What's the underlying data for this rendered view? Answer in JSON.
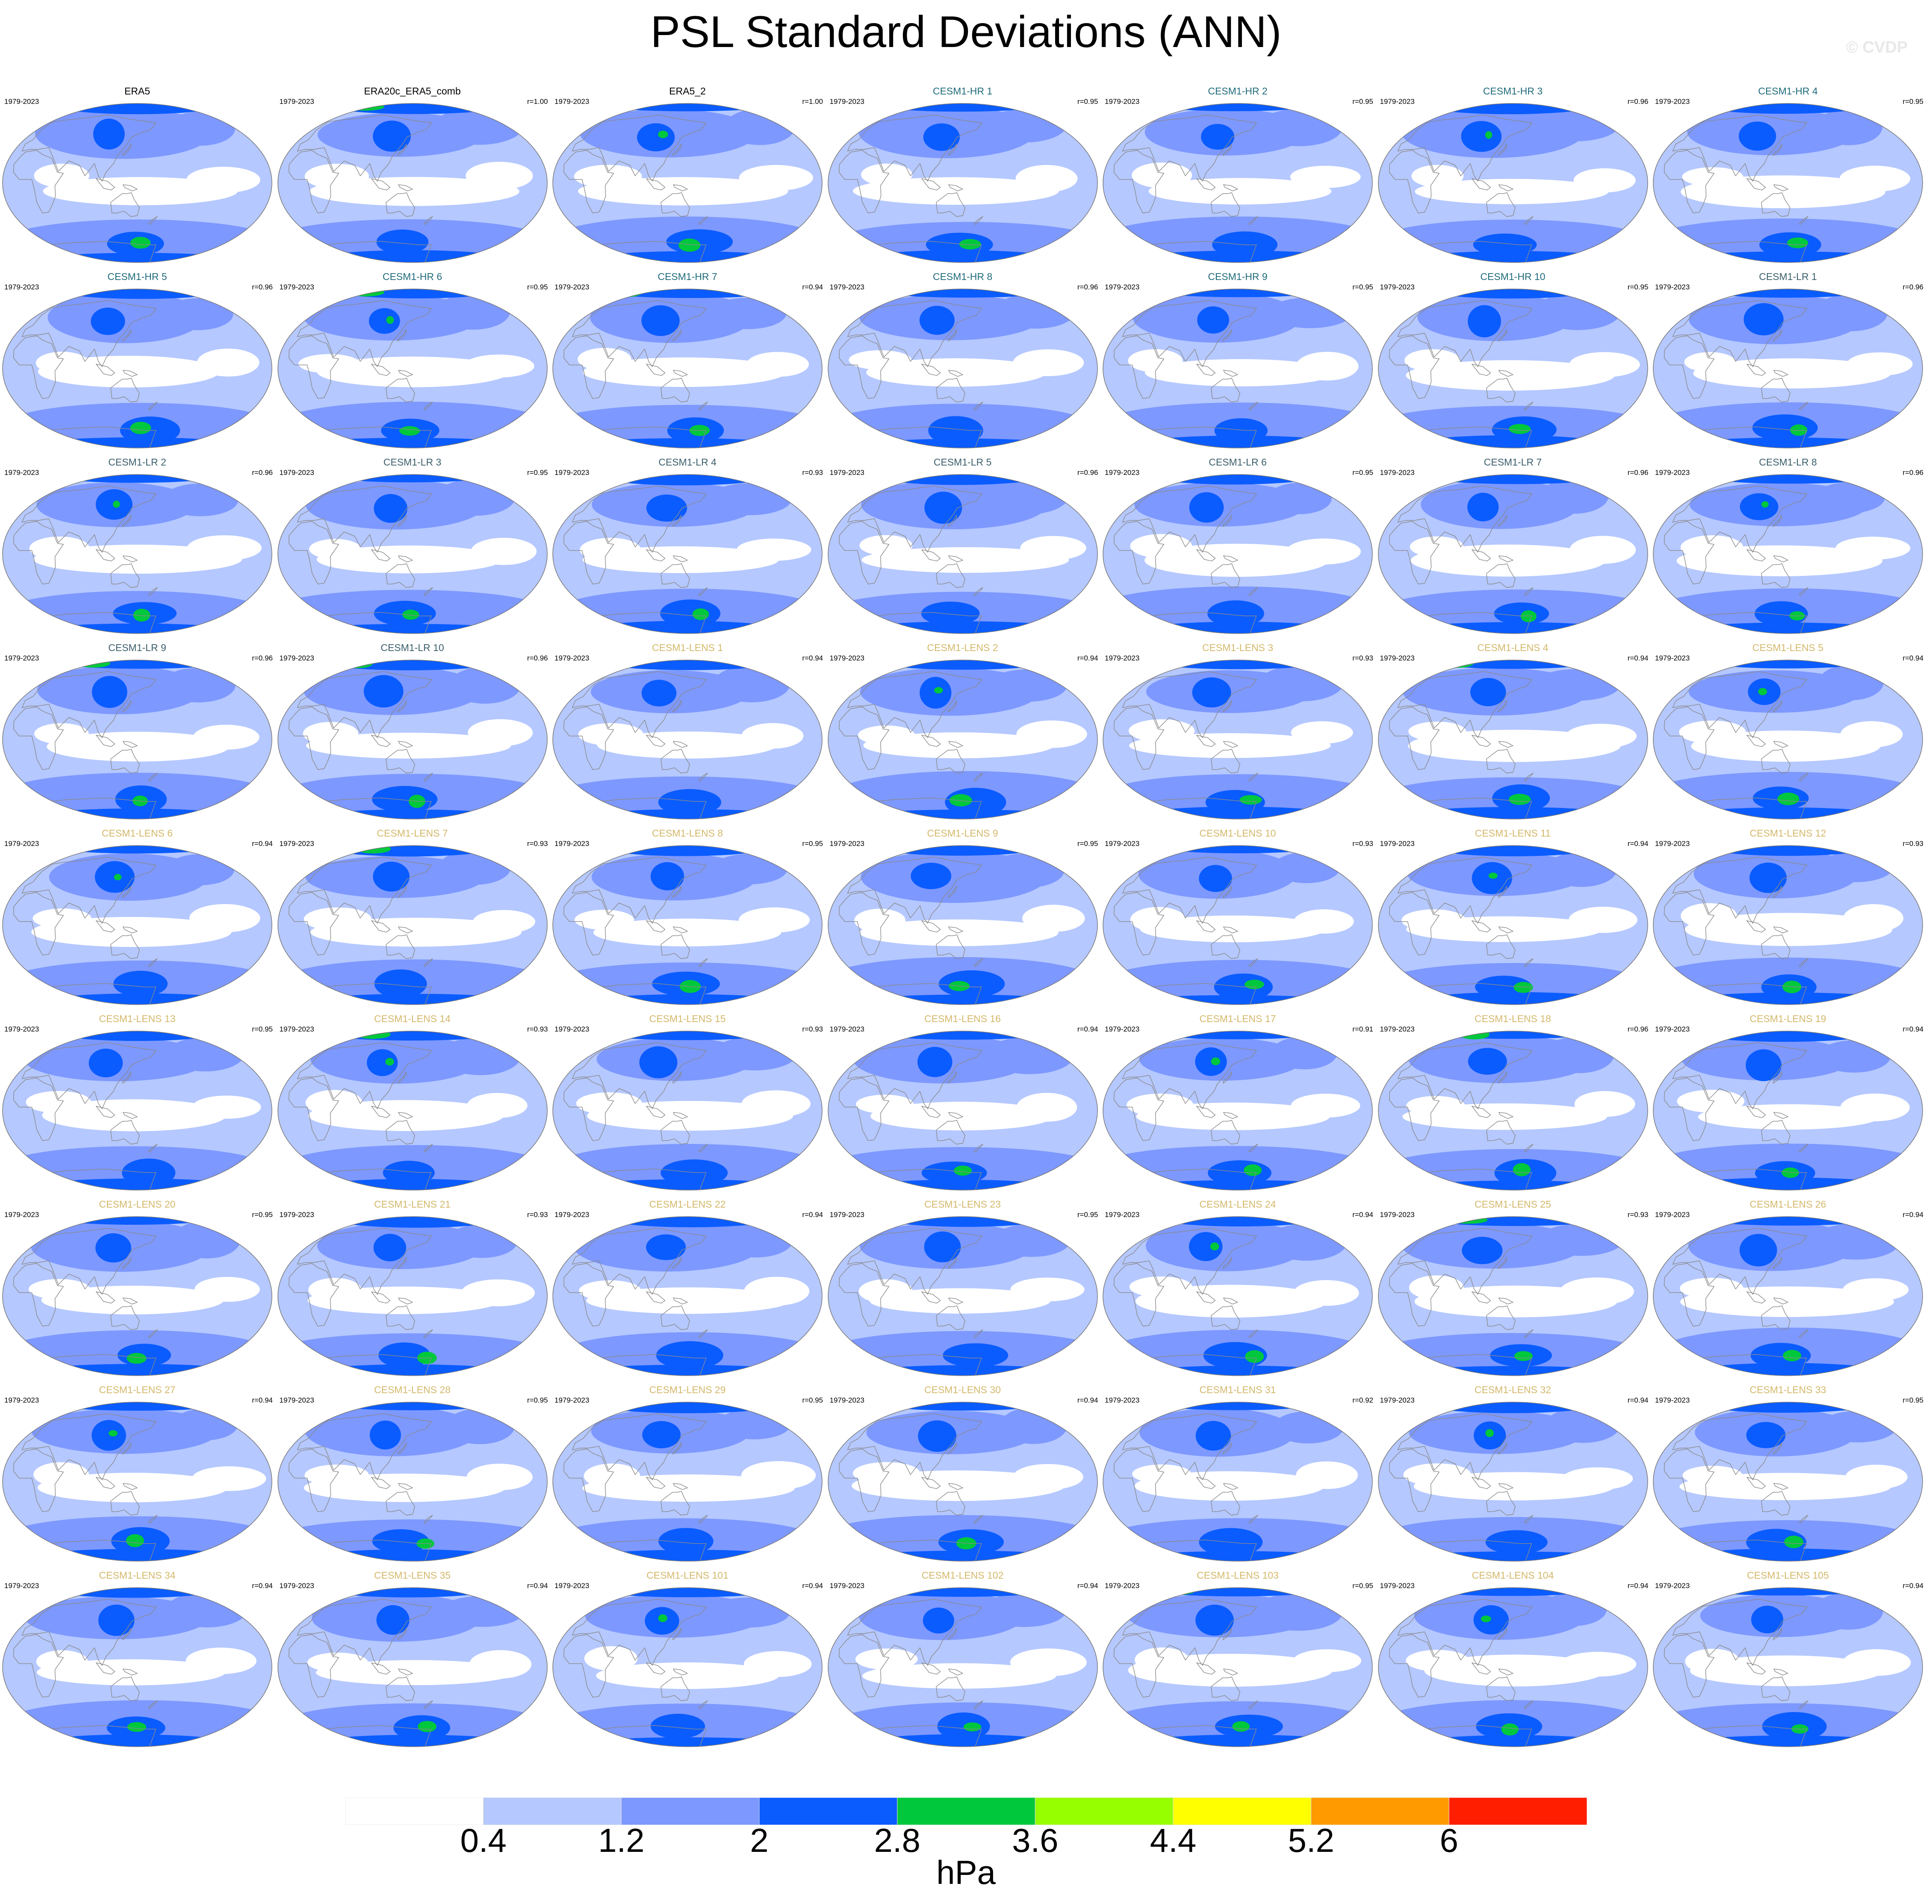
{
  "title": "PSL Standard Deviations (ANN)",
  "watermark": "© CVDP",
  "chart_data": {
    "type": "heatmap",
    "projection": "Robinson (Pacific-centered global map)",
    "grid_layout": {
      "rows": 9,
      "columns": 7
    },
    "period": "1979-2023",
    "colors": {
      "reference_label": "#000000",
      "cesm1_hr": "#1f6b7a",
      "cesm1_lr": "#3b5f6b",
      "cesm1_lens": "#d4b86a",
      "coastline": "#8a8a8a"
    },
    "colorbar": {
      "unit": "hPa",
      "tick_labels": [
        "0.4",
        "1.2",
        "2",
        "2.8",
        "3.6",
        "4.4",
        "5.2",
        "6"
      ],
      "levels": [
        0.4,
        1.2,
        2,
        2.8,
        3.6,
        4.4,
        5.2,
        6
      ],
      "colors": [
        "#ffffff",
        "#b5c8ff",
        "#7d98ff",
        "#0a5cff",
        "#00c83c",
        "#96ff00",
        "#ffff00",
        "#ff9a00",
        "#ff1e00"
      ]
    },
    "panels": [
      {
        "name": "ERA5",
        "group": "reference",
        "period": "1979-2023",
        "corr": ""
      },
      {
        "name": "ERA20c_ERA5_comb",
        "group": "reference",
        "period": "1979-2023",
        "corr": "r=1.00"
      },
      {
        "name": "ERA5_2",
        "group": "reference",
        "period": "1979-2023",
        "corr": "r=1.00"
      },
      {
        "name": "CESM1-HR 1",
        "group": "hr",
        "period": "1979-2023",
        "corr": "r=0.95"
      },
      {
        "name": "CESM1-HR 2",
        "group": "hr",
        "period": "1979-2023",
        "corr": "r=0.95"
      },
      {
        "name": "CESM1-HR 3",
        "group": "hr",
        "period": "1979-2023",
        "corr": "r=0.96"
      },
      {
        "name": "CESM1-HR 4",
        "group": "hr",
        "period": "1979-2023",
        "corr": "r=0.95"
      },
      {
        "name": "CESM1-HR 5",
        "group": "hr",
        "period": "1979-2023",
        "corr": "r=0.96"
      },
      {
        "name": "CESM1-HR 6",
        "group": "hr",
        "period": "1979-2023",
        "corr": "r=0.95"
      },
      {
        "name": "CESM1-HR 7",
        "group": "hr",
        "period": "1979-2023",
        "corr": "r=0.94"
      },
      {
        "name": "CESM1-HR 8",
        "group": "hr",
        "period": "1979-2023",
        "corr": "r=0.96"
      },
      {
        "name": "CESM1-HR 9",
        "group": "hr",
        "period": "1979-2023",
        "corr": "r=0.95"
      },
      {
        "name": "CESM1-HR 10",
        "group": "hr",
        "period": "1979-2023",
        "corr": "r=0.95"
      },
      {
        "name": "CESM1-LR 1",
        "group": "lr",
        "period": "1979-2023",
        "corr": "r=0.96"
      },
      {
        "name": "CESM1-LR 2",
        "group": "lr",
        "period": "1979-2023",
        "corr": "r=0.96"
      },
      {
        "name": "CESM1-LR 3",
        "group": "lr",
        "period": "1979-2023",
        "corr": "r=0.95"
      },
      {
        "name": "CESM1-LR 4",
        "group": "lr",
        "period": "1979-2023",
        "corr": "r=0.93"
      },
      {
        "name": "CESM1-LR 5",
        "group": "lr",
        "period": "1979-2023",
        "corr": "r=0.96"
      },
      {
        "name": "CESM1-LR 6",
        "group": "lr",
        "period": "1979-2023",
        "corr": "r=0.95"
      },
      {
        "name": "CESM1-LR 7",
        "group": "lr",
        "period": "1979-2023",
        "corr": "r=0.96"
      },
      {
        "name": "CESM1-LR 8",
        "group": "lr",
        "period": "1979-2023",
        "corr": "r=0.96"
      },
      {
        "name": "CESM1-LR 9",
        "group": "lr",
        "period": "1979-2023",
        "corr": "r=0.96"
      },
      {
        "name": "CESM1-LR 10",
        "group": "lr",
        "period": "1979-2023",
        "corr": "r=0.96"
      },
      {
        "name": "CESM1-LENS 1",
        "group": "lens",
        "period": "1979-2023",
        "corr": "r=0.94"
      },
      {
        "name": "CESM1-LENS 2",
        "group": "lens",
        "period": "1979-2023",
        "corr": "r=0.94"
      },
      {
        "name": "CESM1-LENS 3",
        "group": "lens",
        "period": "1979-2023",
        "corr": "r=0.93"
      },
      {
        "name": "CESM1-LENS 4",
        "group": "lens",
        "period": "1979-2023",
        "corr": "r=0.94"
      },
      {
        "name": "CESM1-LENS 5",
        "group": "lens",
        "period": "1979-2023",
        "corr": "r=0.94"
      },
      {
        "name": "CESM1-LENS 6",
        "group": "lens",
        "period": "1979-2023",
        "corr": "r=0.94"
      },
      {
        "name": "CESM1-LENS 7",
        "group": "lens",
        "period": "1979-2023",
        "corr": "r=0.93"
      },
      {
        "name": "CESM1-LENS 8",
        "group": "lens",
        "period": "1979-2023",
        "corr": "r=0.95"
      },
      {
        "name": "CESM1-LENS 9",
        "group": "lens",
        "period": "1979-2023",
        "corr": "r=0.95"
      },
      {
        "name": "CESM1-LENS 10",
        "group": "lens",
        "period": "1979-2023",
        "corr": "r=0.93"
      },
      {
        "name": "CESM1-LENS 11",
        "group": "lens",
        "period": "1979-2023",
        "corr": "r=0.94"
      },
      {
        "name": "CESM1-LENS 12",
        "group": "lens",
        "period": "1979-2023",
        "corr": "r=0.93"
      },
      {
        "name": "CESM1-LENS 13",
        "group": "lens",
        "period": "1979-2023",
        "corr": "r=0.95"
      },
      {
        "name": "CESM1-LENS 14",
        "group": "lens",
        "period": "1979-2023",
        "corr": "r=0.93"
      },
      {
        "name": "CESM1-LENS 15",
        "group": "lens",
        "period": "1979-2023",
        "corr": "r=0.93"
      },
      {
        "name": "CESM1-LENS 16",
        "group": "lens",
        "period": "1979-2023",
        "corr": "r=0.94"
      },
      {
        "name": "CESM1-LENS 17",
        "group": "lens",
        "period": "1979-2023",
        "corr": "r=0.91"
      },
      {
        "name": "CESM1-LENS 18",
        "group": "lens",
        "period": "1979-2023",
        "corr": "r=0.96"
      },
      {
        "name": "CESM1-LENS 19",
        "group": "lens",
        "period": "1979-2023",
        "corr": "r=0.94"
      },
      {
        "name": "CESM1-LENS 20",
        "group": "lens",
        "period": "1979-2023",
        "corr": "r=0.95"
      },
      {
        "name": "CESM1-LENS 21",
        "group": "lens",
        "period": "1979-2023",
        "corr": "r=0.93"
      },
      {
        "name": "CESM1-LENS 22",
        "group": "lens",
        "period": "1979-2023",
        "corr": "r=0.94"
      },
      {
        "name": "CESM1-LENS 23",
        "group": "lens",
        "period": "1979-2023",
        "corr": "r=0.95"
      },
      {
        "name": "CESM1-LENS 24",
        "group": "lens",
        "period": "1979-2023",
        "corr": "r=0.94"
      },
      {
        "name": "CESM1-LENS 25",
        "group": "lens",
        "period": "1979-2023",
        "corr": "r=0.93"
      },
      {
        "name": "CESM1-LENS 26",
        "group": "lens",
        "period": "1979-2023",
        "corr": "r=0.94"
      },
      {
        "name": "CESM1-LENS 27",
        "group": "lens",
        "period": "1979-2023",
        "corr": "r=0.94"
      },
      {
        "name": "CESM1-LENS 28",
        "group": "lens",
        "period": "1979-2023",
        "corr": "r=0.95"
      },
      {
        "name": "CESM1-LENS 29",
        "group": "lens",
        "period": "1979-2023",
        "corr": "r=0.95"
      },
      {
        "name": "CESM1-LENS 30",
        "group": "lens",
        "period": "1979-2023",
        "corr": "r=0.94"
      },
      {
        "name": "CESM1-LENS 31",
        "group": "lens",
        "period": "1979-2023",
        "corr": "r=0.92"
      },
      {
        "name": "CESM1-LENS 32",
        "group": "lens",
        "period": "1979-2023",
        "corr": "r=0.94"
      },
      {
        "name": "CESM1-LENS 33",
        "group": "lens",
        "period": "1979-2023",
        "corr": "r=0.95"
      },
      {
        "name": "CESM1-LENS 34",
        "group": "lens",
        "period": "1979-2023",
        "corr": "r=0.94"
      },
      {
        "name": "CESM1-LENS 35",
        "group": "lens",
        "period": "1979-2023",
        "corr": "r=0.94"
      },
      {
        "name": "CESM1-LENS 101",
        "group": "lens",
        "period": "1979-2023",
        "corr": "r=0.94"
      },
      {
        "name": "CESM1-LENS 102",
        "group": "lens",
        "period": "1979-2023",
        "corr": "r=0.94"
      },
      {
        "name": "CESM1-LENS 103",
        "group": "lens",
        "period": "1979-2023",
        "corr": "r=0.95"
      },
      {
        "name": "CESM1-LENS 104",
        "group": "lens",
        "period": "1979-2023",
        "corr": "r=0.94"
      },
      {
        "name": "CESM1-LENS 105",
        "group": "lens",
        "period": "1979-2023",
        "corr": "r=0.94"
      }
    ]
  }
}
